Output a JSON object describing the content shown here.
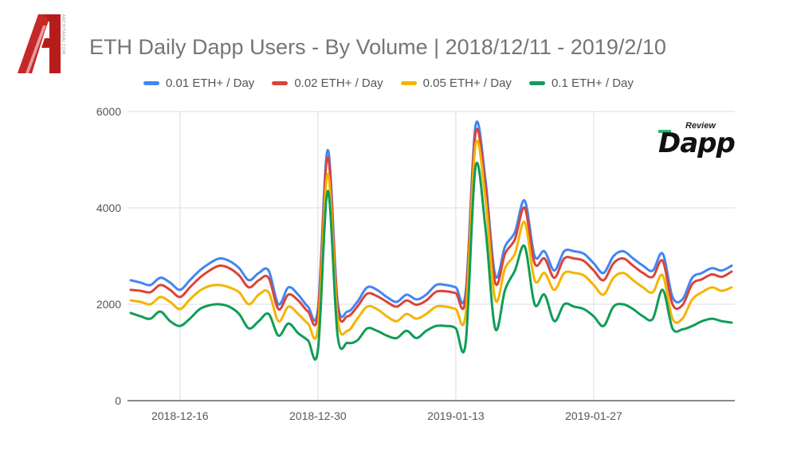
{
  "header": {
    "site_logo": {
      "icon": "site-logo-icon",
      "letter": "A",
      "caption": "ARCHITANAI.COM"
    }
  },
  "brand_badge": {
    "review": "Review",
    "name": "Dapp",
    "icon": "dapp-review-logo-icon"
  },
  "chart_data": {
    "type": "line",
    "title": "ETH Daily Dapp Users - By Volume | 2018/12/11 - 2019/2/10",
    "xlabel": "",
    "ylabel": "",
    "x_tick_labels": [
      "2018-12-16",
      "2018-12-30",
      "2019-01-13",
      "2019-01-27"
    ],
    "y_tick_labels": [
      "0",
      "2000",
      "4000",
      "6000"
    ],
    "ylim": [
      0,
      6000
    ],
    "x_range": [
      "2018-12-11",
      "2019-02-10"
    ],
    "grid": true,
    "legend_position": "top",
    "categories": [
      "2018-12-11",
      "2018-12-12",
      "2018-12-13",
      "2018-12-14",
      "2018-12-15",
      "2018-12-16",
      "2018-12-17",
      "2018-12-18",
      "2018-12-19",
      "2018-12-20",
      "2018-12-21",
      "2018-12-22",
      "2018-12-23",
      "2018-12-24",
      "2018-12-25",
      "2018-12-26",
      "2018-12-27",
      "2018-12-28",
      "2018-12-29",
      "2018-12-30",
      "2018-12-31",
      "2019-01-01",
      "2019-01-02",
      "2019-01-03",
      "2019-01-04",
      "2019-01-05",
      "2019-01-06",
      "2019-01-07",
      "2019-01-08",
      "2019-01-09",
      "2019-01-10",
      "2019-01-11",
      "2019-01-12",
      "2019-01-13",
      "2019-01-14",
      "2019-01-15",
      "2019-01-16",
      "2019-01-17",
      "2019-01-18",
      "2019-01-19",
      "2019-01-20",
      "2019-01-21",
      "2019-01-22",
      "2019-01-23",
      "2019-01-24",
      "2019-01-25",
      "2019-01-26",
      "2019-01-27",
      "2019-01-28",
      "2019-01-29",
      "2019-01-30",
      "2019-01-31",
      "2019-02-01",
      "2019-02-02",
      "2019-02-03",
      "2019-02-04",
      "2019-02-05",
      "2019-02-06",
      "2019-02-07",
      "2019-02-08",
      "2019-02-09",
      "2019-02-10"
    ],
    "series": [
      {
        "name": "0.01 ETH+ / Day",
        "color": "#4285f4",
        "values": [
          2500,
          2450,
          2400,
          2550,
          2450,
          2300,
          2500,
          2700,
          2850,
          2950,
          2900,
          2750,
          2500,
          2650,
          2700,
          2000,
          2350,
          2200,
          1950,
          1900,
          5200,
          2050,
          1850,
          2050,
          2350,
          2300,
          2150,
          2050,
          2200,
          2100,
          2200,
          2400,
          2400,
          2350,
          2250,
          5700,
          4600,
          2600,
          3200,
          3500,
          4150,
          3000,
          3100,
          2700,
          3100,
          3100,
          3050,
          2850,
          2650,
          3000,
          3100,
          2950,
          2800,
          2700,
          3050,
          2150,
          2100,
          2550,
          2650,
          2750,
          2700,
          2800
        ]
      },
      {
        "name": "0.02 ETH+ / Day",
        "color": "#db4437",
        "values": [
          2300,
          2280,
          2250,
          2400,
          2300,
          2150,
          2350,
          2550,
          2700,
          2800,
          2750,
          2600,
          2350,
          2500,
          2550,
          1900,
          2200,
          2080,
          1850,
          1800,
          5050,
          1950,
          1750,
          1950,
          2220,
          2170,
          2050,
          1950,
          2080,
          1990,
          2080,
          2260,
          2270,
          2230,
          2130,
          5550,
          4450,
          2450,
          3050,
          3350,
          4000,
          2850,
          2950,
          2550,
          2950,
          2950,
          2900,
          2700,
          2500,
          2850,
          2950,
          2800,
          2650,
          2570,
          2900,
          2000,
          1980,
          2420,
          2520,
          2620,
          2570,
          2680
        ]
      },
      {
        "name": "0.05 ETH+ / Day",
        "color": "#f4b400",
        "values": [
          2080,
          2050,
          2000,
          2150,
          2050,
          1900,
          2100,
          2280,
          2380,
          2400,
          2350,
          2250,
          2000,
          2200,
          2250,
          1650,
          1950,
          1800,
          1600,
          1500,
          4700,
          1700,
          1450,
          1700,
          1950,
          1900,
          1750,
          1650,
          1800,
          1700,
          1800,
          1950,
          1950,
          1900,
          1800,
          5300,
          4200,
          2100,
          2750,
          3050,
          3700,
          2500,
          2650,
          2300,
          2650,
          2650,
          2600,
          2400,
          2200,
          2550,
          2650,
          2500,
          2350,
          2250,
          2600,
          1700,
          1700,
          2100,
          2250,
          2350,
          2280,
          2350
        ]
      },
      {
        "name": "0.1 ETH+ / Day",
        "color": "#0f9d58",
        "values": [
          1820,
          1750,
          1700,
          1850,
          1650,
          1550,
          1700,
          1900,
          1980,
          2000,
          1950,
          1800,
          1500,
          1650,
          1800,
          1350,
          1600,
          1400,
          1250,
          1050,
          4350,
          1350,
          1200,
          1250,
          1500,
          1450,
          1350,
          1300,
          1450,
          1300,
          1450,
          1550,
          1550,
          1500,
          1200,
          4850,
          3600,
          1500,
          2300,
          2700,
          3200,
          2000,
          2200,
          1650,
          2000,
          1950,
          1900,
          1750,
          1550,
          1950,
          2000,
          1900,
          1750,
          1700,
          2300,
          1500,
          1480,
          1550,
          1650,
          1700,
          1650,
          1620
        ]
      }
    ]
  }
}
